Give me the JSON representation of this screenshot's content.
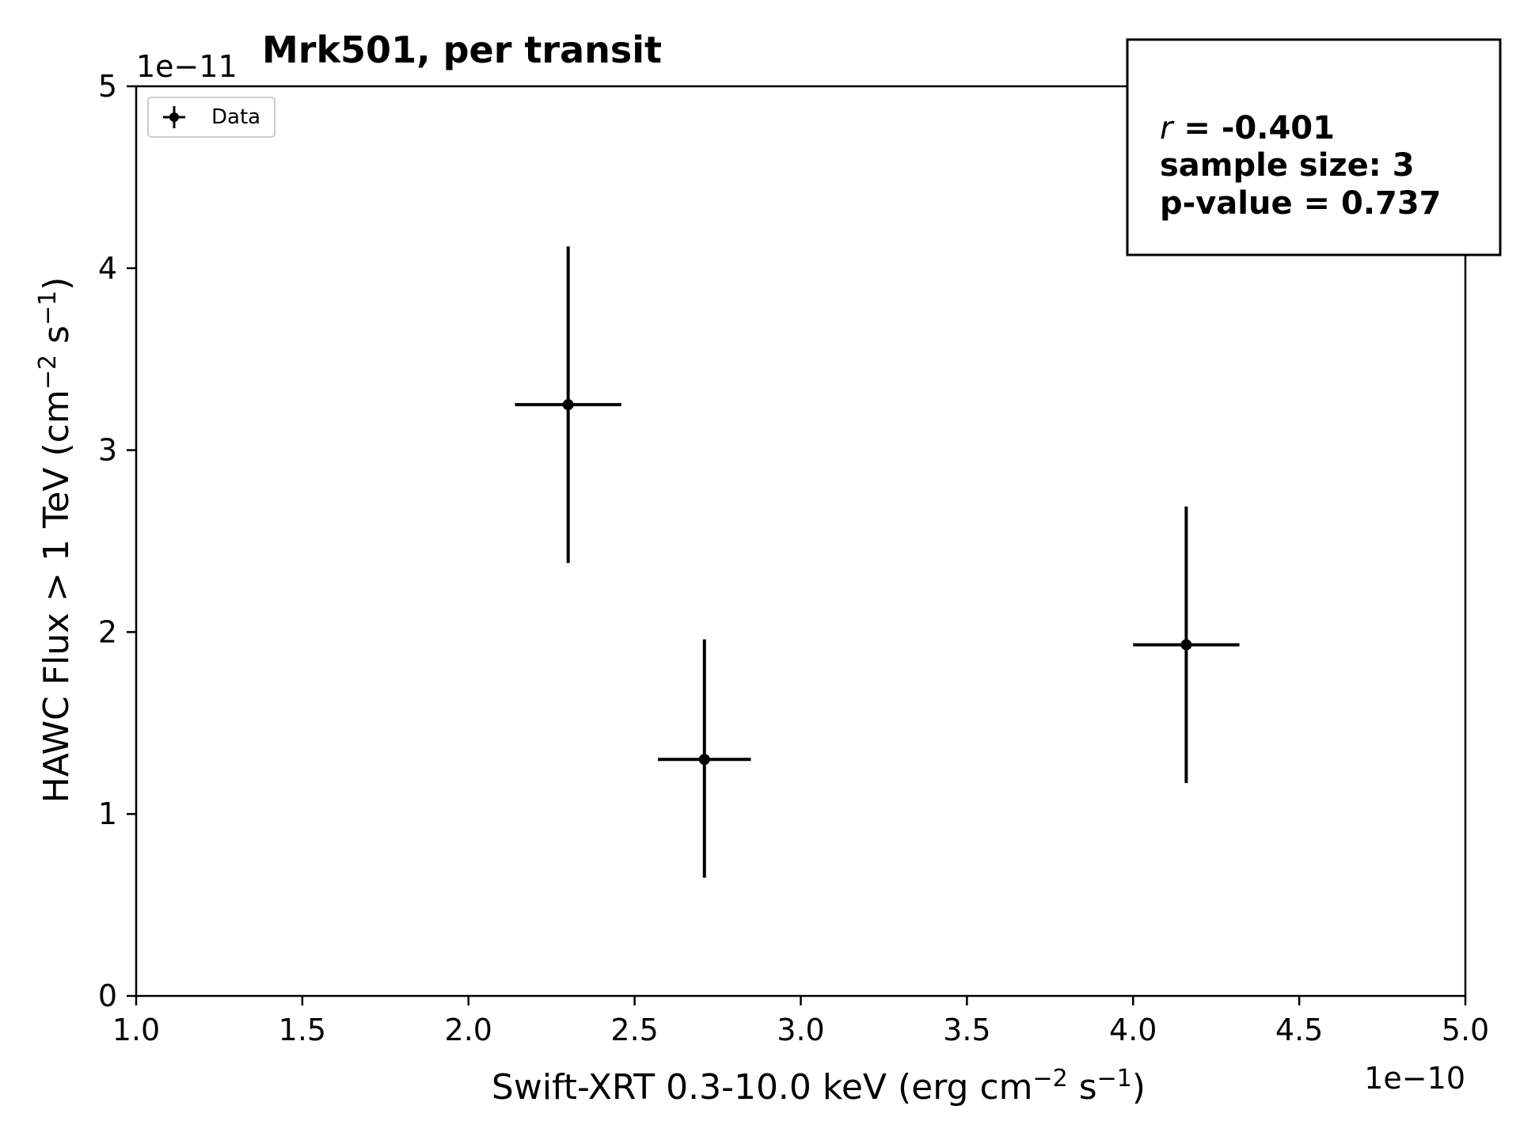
{
  "chart_data": {
    "type": "scatter",
    "title": "Mrk501, per transit",
    "xlabel": {
      "main": "Swift-XRT 0.3-10.0 keV (erg cm",
      "sup1": "−2",
      "mid": " s",
      "sup2": "−1",
      "end": ")"
    },
    "ylabel": {
      "main": "HAWC Flux > 1 TeV (cm",
      "sup1": "−2",
      "mid": " s",
      "sup2": "−1",
      "end": ")"
    },
    "x_offset_label": "1e−10",
    "y_offset_label": "1e−11",
    "xlim": [
      1.0,
      5.0
    ],
    "ylim": [
      0,
      5
    ],
    "x_ticks": [
      1.0,
      1.5,
      2.0,
      2.5,
      3.0,
      3.5,
      4.0,
      4.5,
      5.0
    ],
    "x_tick_labels": [
      "1.0",
      "1.5",
      "2.0",
      "2.5",
      "3.0",
      "3.5",
      "4.0",
      "4.5",
      "5.0"
    ],
    "y_ticks": [
      0,
      1,
      2,
      3,
      4,
      5
    ],
    "y_tick_labels": [
      "0",
      "1",
      "2",
      "3",
      "4",
      "5"
    ],
    "grid": false,
    "legend": {
      "position": "top-left",
      "entries": [
        "Data"
      ]
    },
    "series": [
      {
        "name": "Data",
        "color": "#000000",
        "points": [
          {
            "x": 2.3,
            "y": 3.25,
            "xerr": 0.16,
            "yerr_low": 0.87,
            "yerr_high": 0.87
          },
          {
            "x": 2.71,
            "y": 1.3,
            "xerr": 0.14,
            "yerr_low": 0.65,
            "yerr_high": 0.66
          },
          {
            "x": 4.16,
            "y": 1.93,
            "xerr": 0.16,
            "yerr_low": 0.76,
            "yerr_high": 0.76
          }
        ]
      }
    ],
    "stats_box": {
      "r_symbol": "r",
      "r_value": " = -0.401",
      "sample_size": "sample size: 3",
      "p_value": "p-value = 0.737"
    }
  }
}
